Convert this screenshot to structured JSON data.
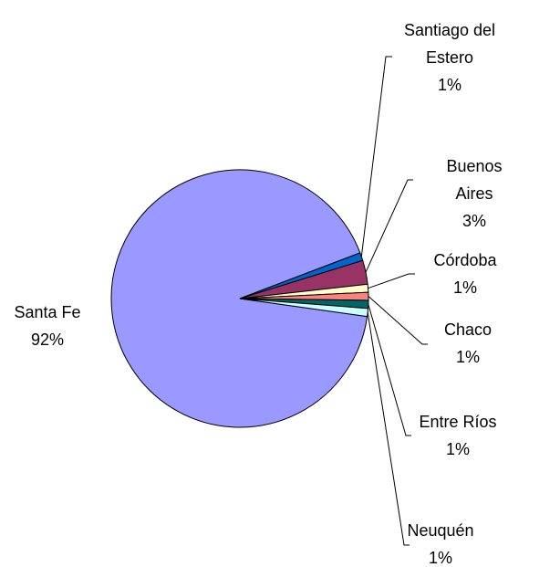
{
  "chart_data": {
    "type": "pie",
    "categories": [
      "Santa Fe",
      "Santiago del Estero",
      "Buenos Aires",
      "Córdoba",
      "Chaco",
      "Entre Ríos",
      "Neuquén"
    ],
    "values": [
      92,
      1,
      3,
      1,
      1,
      1,
      1
    ],
    "value_labels": [
      "92%",
      "1%",
      "3%",
      "1%",
      "1%",
      "1%",
      "1%"
    ],
    "colors": [
      "#9999ff",
      "#0066cc",
      "#993366",
      "#ffffcc",
      "#ff8080",
      "#006666",
      "#ccffff"
    ]
  }
}
